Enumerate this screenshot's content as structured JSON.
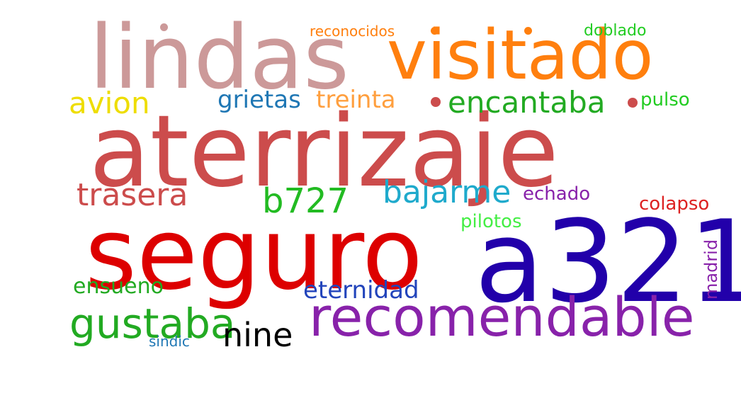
{
  "word_cloud": {
    "words": [
      {
        "key": "lindas",
        "text": "lindas",
        "color": "#cc9999"
      },
      {
        "key": "visitado",
        "text": "visitado",
        "color": "#ff7f0e"
      },
      {
        "key": "aterrizaje",
        "text": "aterrizaje",
        "color": "#cc4c4c"
      },
      {
        "key": "seguro",
        "text": "seguro",
        "color": "#dd0000"
      },
      {
        "key": "a321",
        "text": "a321",
        "color": "#2200aa"
      },
      {
        "key": "recomendable",
        "text": "recomendable",
        "color": "#8822aa"
      },
      {
        "key": "reconocidos",
        "text": "reconocidos",
        "color": "#ff7f0e"
      },
      {
        "key": "doblado",
        "text": "doblado",
        "color": "#22cc22"
      },
      {
        "key": "avion",
        "text": "avion",
        "color": "#eedd00"
      },
      {
        "key": "grietas",
        "text": "grietas",
        "color": "#1f77b4"
      },
      {
        "key": "treinta",
        "text": "treinta",
        "color": "#ff9f3e"
      },
      {
        "key": "encantaba",
        "text": "encantaba",
        "color": "#22aa22"
      },
      {
        "key": "pulso",
        "text": "pulso",
        "color": "#22cc22"
      },
      {
        "key": "trasera",
        "text": "trasera",
        "color": "#cc4c4c"
      },
      {
        "key": "b727",
        "text": "b727",
        "color": "#22bb22"
      },
      {
        "key": "bajarme",
        "text": "bajarme",
        "color": "#1faacc"
      },
      {
        "key": "echado",
        "text": "echado",
        "color": "#8822aa"
      },
      {
        "key": "colapso",
        "text": "colapso",
        "color": "#dd2222"
      },
      {
        "key": "pilotos",
        "text": "pilotos",
        "color": "#44ee44"
      },
      {
        "key": "ensueno",
        "text": "ensueno",
        "color": "#22aa22"
      },
      {
        "key": "eternidad",
        "text": "eternidad",
        "color": "#2244bb"
      },
      {
        "key": "gustaba",
        "text": "gustaba",
        "color": "#22aa22"
      },
      {
        "key": "nine",
        "text": "nine",
        "color": "#000000"
      },
      {
        "key": "sindic",
        "text": "sindic",
        "color": "#1f77b4"
      },
      {
        "key": "madrid",
        "text": "madrid",
        "color": "#8822aa"
      }
    ]
  }
}
